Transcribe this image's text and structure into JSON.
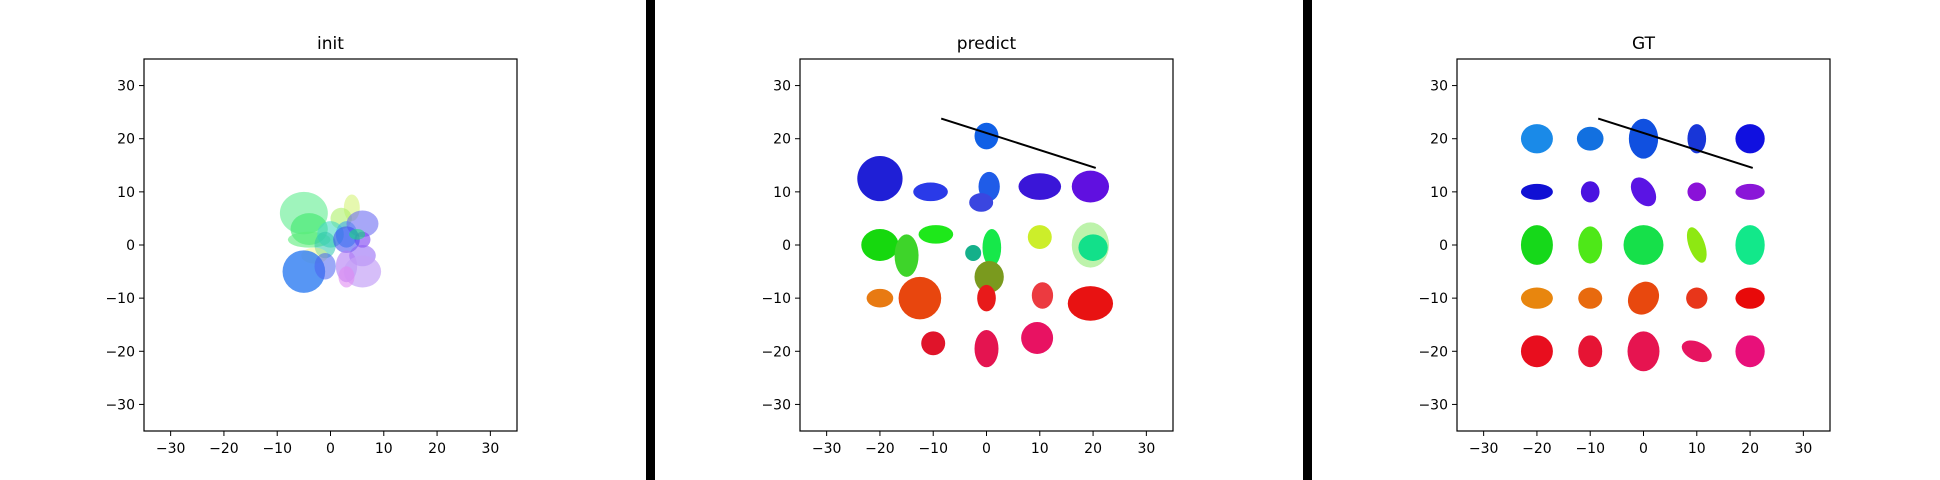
{
  "chart_data": [
    {
      "type": "scatter",
      "title": "init",
      "xlim": [
        -35,
        35
      ],
      "ylim": [
        -35,
        35
      ],
      "xticks": [
        "−30",
        "−20",
        "−10",
        "0",
        "10",
        "20",
        "30"
      ],
      "yticks": [
        "−30",
        "−20",
        "−10",
        "0",
        "10",
        "20",
        "30"
      ],
      "xtick_values": [
        -30,
        -20,
        -10,
        0,
        10,
        20,
        30
      ],
      "ytick_values": [
        -30,
        -20,
        -10,
        0,
        10,
        20,
        30
      ],
      "grid": false,
      "ellipses": [
        {
          "x": -5,
          "y": 6,
          "w": 9,
          "h": 8,
          "angle": 0,
          "color": "#7ff0a6",
          "opacity": 0.75
        },
        {
          "x": -4,
          "y": 3,
          "w": 7,
          "h": 6,
          "angle": 0,
          "color": "#3ee86a",
          "opacity": 0.6
        },
        {
          "x": -4,
          "y": 1,
          "w": 8,
          "h": 3,
          "angle": 0,
          "color": "#5aec7a",
          "opacity": 0.6
        },
        {
          "x": 4,
          "y": 7,
          "w": 3,
          "h": 5,
          "angle": 0,
          "color": "#d6f47a",
          "opacity": 0.6
        },
        {
          "x": 2,
          "y": 5,
          "w": 4,
          "h": 4,
          "angle": 0,
          "color": "#aef06a",
          "opacity": 0.6
        },
        {
          "x": 0,
          "y": 2,
          "w": 5,
          "h": 5,
          "angle": 0,
          "color": "#46d8c4",
          "opacity": 0.6
        },
        {
          "x": -1,
          "y": 0,
          "w": 4,
          "h": 5,
          "angle": 0,
          "color": "#2fc7ad",
          "opacity": 0.55
        },
        {
          "x": 3,
          "y": 2,
          "w": 4,
          "h": 5,
          "angle": 0,
          "color": "#3aa7f0",
          "opacity": 0.6
        },
        {
          "x": 6,
          "y": 4,
          "w": 6,
          "h": 5,
          "angle": 0,
          "color": "#6c6cf2",
          "opacity": 0.6
        },
        {
          "x": 6,
          "y": 1,
          "w": 3,
          "h": 3,
          "angle": 0,
          "color": "#7a3cf2",
          "opacity": 0.6
        },
        {
          "x": 3,
          "y": 1,
          "w": 5,
          "h": 5,
          "angle": 0,
          "color": "#3c46f0",
          "opacity": 0.55
        },
        {
          "x": 6,
          "y": -2,
          "w": 5,
          "h": 4,
          "angle": 0,
          "color": "#8c5cf4",
          "opacity": 0.55
        },
        {
          "x": 5,
          "y": 2,
          "w": 3,
          "h": 2,
          "angle": 0,
          "color": "#16e07a",
          "opacity": 0.6
        },
        {
          "x": -3,
          "y": -2,
          "w": 5,
          "h": 3,
          "angle": 0,
          "color": "#f2f27a",
          "opacity": 0.45
        },
        {
          "x": -5,
          "y": -5,
          "w": 8,
          "h": 8,
          "angle": 0,
          "color": "#3a84f2",
          "opacity": 0.85
        },
        {
          "x": -1,
          "y": -4,
          "w": 4,
          "h": 5,
          "angle": 0,
          "color": "#4a62f0",
          "opacity": 0.55
        },
        {
          "x": 3,
          "y": -4,
          "w": 4,
          "h": 6,
          "angle": 0,
          "color": "#b07af4",
          "opacity": 0.6
        },
        {
          "x": 6,
          "y": -5,
          "w": 7,
          "h": 6,
          "angle": 0,
          "color": "#c4a2f6",
          "opacity": 0.7
        },
        {
          "x": 3,
          "y": -6,
          "w": 3,
          "h": 4,
          "angle": 0,
          "color": "#e08af2",
          "opacity": 0.6
        }
      ]
    },
    {
      "type": "scatter",
      "title": "predict",
      "xlim": [
        -35,
        35
      ],
      "ylim": [
        -35,
        35
      ],
      "xticks": [
        "−30",
        "−20",
        "−10",
        "0",
        "10",
        "20",
        "30"
      ],
      "yticks": [
        "−30",
        "−20",
        "−10",
        "0",
        "10",
        "20",
        "30"
      ],
      "xtick_values": [
        -30,
        -20,
        -10,
        0,
        10,
        20,
        30
      ],
      "ytick_values": [
        -30,
        -20,
        -10,
        0,
        10,
        20,
        30
      ],
      "grid": false,
      "line": [
        [
          -8.5,
          23.8
        ],
        [
          20.5,
          14.5
        ]
      ],
      "ellipses": [
        {
          "x": -20,
          "y": 12.5,
          "w": 8.5,
          "h": 8.5,
          "angle": 0,
          "color": "#1f1fd6",
          "opacity": 1
        },
        {
          "x": -10.5,
          "y": 10,
          "w": 6.5,
          "h": 3.5,
          "angle": 0,
          "color": "#2a3ae8",
          "opacity": 1
        },
        {
          "x": 0,
          "y": 20.5,
          "w": 4.5,
          "h": 5,
          "angle": 0,
          "color": "#1060e6",
          "opacity": 1
        },
        {
          "x": 0.5,
          "y": 11,
          "w": 4,
          "h": 5.5,
          "angle": 0,
          "color": "#1f5ce8",
          "opacity": 1
        },
        {
          "x": -1,
          "y": 8,
          "w": 4.5,
          "h": 3.5,
          "angle": 0,
          "color": "#3a46e0",
          "opacity": 1
        },
        {
          "x": 10,
          "y": 11,
          "w": 8,
          "h": 5,
          "angle": 0,
          "color": "#3a16d8",
          "opacity": 1
        },
        {
          "x": 19.5,
          "y": 11,
          "w": 7,
          "h": 6,
          "angle": 0,
          "color": "#6010e0",
          "opacity": 1
        },
        {
          "x": -20,
          "y": 0,
          "w": 7,
          "h": 6,
          "angle": 0,
          "color": "#16d80e",
          "opacity": 1
        },
        {
          "x": -15,
          "y": -2,
          "w": 4.5,
          "h": 8,
          "angle": 0,
          "color": "#3ed42a",
          "opacity": 1
        },
        {
          "x": -9.5,
          "y": 2,
          "w": 6.5,
          "h": 3.5,
          "angle": 0,
          "color": "#1ee81a",
          "opacity": 1
        },
        {
          "x": -2.5,
          "y": -1.5,
          "w": 3,
          "h": 3,
          "angle": 0,
          "color": "#14b08a",
          "opacity": 1
        },
        {
          "x": 1,
          "y": -0.5,
          "w": 3.5,
          "h": 7,
          "angle": 0,
          "color": "#16e84a",
          "opacity": 1
        },
        {
          "x": 10,
          "y": 1.5,
          "w": 4.5,
          "h": 4.5,
          "angle": 0,
          "color": "#ccee2a",
          "opacity": 1
        },
        {
          "x": 19.5,
          "y": 0,
          "w": 7,
          "h": 8.5,
          "angle": 0,
          "color": "#b6f2a2",
          "opacity": 0.9
        },
        {
          "x": 20,
          "y": -0.5,
          "w": 5.5,
          "h": 5,
          "angle": 0,
          "color": "#12e08a",
          "opacity": 1
        },
        {
          "x": 0.5,
          "y": -6,
          "w": 5.5,
          "h": 6,
          "angle": 0,
          "color": "#7a9a1e",
          "opacity": 1
        },
        {
          "x": -20,
          "y": -10,
          "w": 5,
          "h": 3.5,
          "angle": 0,
          "color": "#e87a12",
          "opacity": 1
        },
        {
          "x": -12.5,
          "y": -10,
          "w": 8,
          "h": 8,
          "angle": 0,
          "color": "#e8460e",
          "opacity": 1
        },
        {
          "x": 0,
          "y": -10,
          "w": 3.5,
          "h": 5,
          "angle": 0,
          "color": "#e81a1a",
          "opacity": 1
        },
        {
          "x": 10.5,
          "y": -9.5,
          "w": 4,
          "h": 5,
          "angle": 0,
          "color": "#ec3a40",
          "opacity": 1
        },
        {
          "x": 19.5,
          "y": -11,
          "w": 8.5,
          "h": 6.5,
          "angle": 0,
          "color": "#e81212",
          "opacity": 1
        },
        {
          "x": -10,
          "y": -18.5,
          "w": 4.5,
          "h": 4.5,
          "angle": 0,
          "color": "#e0142a",
          "opacity": 1
        },
        {
          "x": 0,
          "y": -19.5,
          "w": 4.5,
          "h": 7,
          "angle": 0,
          "color": "#e41450",
          "opacity": 1
        },
        {
          "x": 9.5,
          "y": -17.5,
          "w": 6,
          "h": 6,
          "angle": 0,
          "color": "#e81262",
          "opacity": 1
        }
      ]
    },
    {
      "type": "scatter",
      "title": "GT",
      "xlim": [
        -35,
        35
      ],
      "ylim": [
        -35,
        35
      ],
      "xticks": [
        "−30",
        "−20",
        "−10",
        "0",
        "10",
        "20",
        "30"
      ],
      "yticks": [
        "−30",
        "−20",
        "−10",
        "0",
        "10",
        "20",
        "30"
      ],
      "xtick_values": [
        -30,
        -20,
        -10,
        0,
        10,
        20,
        30
      ],
      "ytick_values": [
        -30,
        -20,
        -10,
        0,
        10,
        20,
        30
      ],
      "grid": false,
      "line": [
        [
          -8.5,
          23.8
        ],
        [
          20.5,
          14.5
        ]
      ],
      "ellipses": [
        {
          "x": -20,
          "y": 20,
          "w": 6,
          "h": 5.5,
          "angle": 0,
          "color": "#1a8ae8",
          "opacity": 1
        },
        {
          "x": -10,
          "y": 20,
          "w": 5,
          "h": 4.5,
          "angle": 0,
          "color": "#1270e0",
          "opacity": 1
        },
        {
          "x": 0,
          "y": 20,
          "w": 5.5,
          "h": 7.5,
          "angle": 0,
          "color": "#1050e0",
          "opacity": 1
        },
        {
          "x": 10,
          "y": 20,
          "w": 3.5,
          "h": 5.5,
          "angle": 0,
          "color": "#1836d8",
          "opacity": 1
        },
        {
          "x": 20,
          "y": 20,
          "w": 5.5,
          "h": 5.5,
          "angle": 0,
          "color": "#1010e0",
          "opacity": 1
        },
        {
          "x": -20,
          "y": 10,
          "w": 6,
          "h": 3,
          "angle": 0,
          "color": "#1010d4",
          "opacity": 1
        },
        {
          "x": -10,
          "y": 10,
          "w": 3.5,
          "h": 4,
          "angle": 0,
          "color": "#4a12e0",
          "opacity": 1
        },
        {
          "x": 0,
          "y": 10,
          "w": 4,
          "h": 6,
          "angle": 35,
          "color": "#5a14e4",
          "opacity": 1
        },
        {
          "x": 10,
          "y": 10,
          "w": 3.5,
          "h": 3.5,
          "angle": 0,
          "color": "#8a12d8",
          "opacity": 1
        },
        {
          "x": 20,
          "y": 10,
          "w": 5.5,
          "h": 3,
          "angle": 0,
          "color": "#8a16d8",
          "opacity": 1
        },
        {
          "x": -20,
          "y": 0,
          "w": 6,
          "h": 7.5,
          "angle": 0,
          "color": "#16d81a",
          "opacity": 1
        },
        {
          "x": -10,
          "y": 0,
          "w": 4.5,
          "h": 7,
          "angle": 0,
          "color": "#4ee818",
          "opacity": 1
        },
        {
          "x": 0,
          "y": 0,
          "w": 7.5,
          "h": 7.5,
          "angle": 0,
          "color": "#16e04a",
          "opacity": 1
        },
        {
          "x": 10,
          "y": 0,
          "w": 3,
          "h": 7,
          "angle": 20,
          "color": "#8ee812",
          "opacity": 1
        },
        {
          "x": 20,
          "y": 0,
          "w": 5.5,
          "h": 7.5,
          "angle": 0,
          "color": "#12e88a",
          "opacity": 1
        },
        {
          "x": -20,
          "y": -10,
          "w": 6,
          "h": 4,
          "angle": 0,
          "color": "#e8860e",
          "opacity": 1
        },
        {
          "x": -10,
          "y": -10,
          "w": 4.5,
          "h": 4,
          "angle": 0,
          "color": "#e86a0e",
          "opacity": 1
        },
        {
          "x": 0,
          "y": -10,
          "w": 5.5,
          "h": 6.5,
          "angle": -35,
          "color": "#e8480e",
          "opacity": 1
        },
        {
          "x": 10,
          "y": -10,
          "w": 4,
          "h": 4,
          "angle": 0,
          "color": "#e8361a",
          "opacity": 1
        },
        {
          "x": 20,
          "y": -10,
          "w": 5.5,
          "h": 4,
          "angle": 0,
          "color": "#e80a0a",
          "opacity": 1
        },
        {
          "x": -20,
          "y": -20,
          "w": 6,
          "h": 6,
          "angle": 0,
          "color": "#e80e1e",
          "opacity": 1
        },
        {
          "x": -10,
          "y": -20,
          "w": 4.5,
          "h": 6,
          "angle": 0,
          "color": "#e61434",
          "opacity": 1
        },
        {
          "x": 0,
          "y": -20,
          "w": 6,
          "h": 7.5,
          "angle": 0,
          "color": "#e61450",
          "opacity": 1
        },
        {
          "x": 10,
          "y": -20,
          "w": 6,
          "h": 3.5,
          "angle": -25,
          "color": "#e61460",
          "opacity": 1
        },
        {
          "x": 20,
          "y": -20,
          "w": 5.5,
          "h": 6,
          "angle": 0,
          "color": "#e8107a",
          "opacity": 1
        }
      ]
    }
  ]
}
